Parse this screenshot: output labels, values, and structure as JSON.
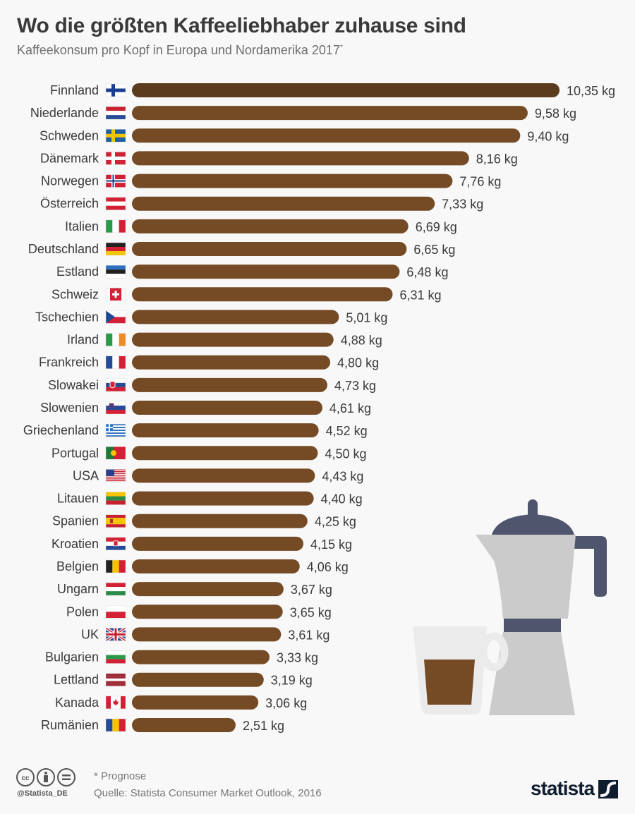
{
  "title": "Wo die größten Kaffeeliebhaber zuhause sind",
  "subtitle": "Kaffeekonsum pro Kopf in Europa und Nordamerika 2017",
  "subtitle_mark": "*",
  "footer": {
    "note": "* Prognose",
    "source": "Quelle: Statista Consumer Market Outlook, 2016",
    "handle": "@Statista_DE",
    "logo": "statista",
    "license_icons": [
      "cc-icon",
      "by-icon",
      "nd-icon"
    ]
  },
  "colors": {
    "bar": "#744b25",
    "bar_highlight": "#5a3b1e",
    "text": "#3a3a3a",
    "pot_body": "#cbcbcb",
    "pot_dark": "#4f556d",
    "cup": "#ebebeb"
  },
  "chart_data": {
    "type": "bar",
    "orientation": "horizontal",
    "unit": "kg",
    "categories": [
      "Finnland",
      "Niederlande",
      "Schweden",
      "Dänemark",
      "Norwegen",
      "Österreich",
      "Italien",
      "Deutschland",
      "Estland",
      "Schweiz",
      "Tschechien",
      "Irland",
      "Frankreich",
      "Slowakei",
      "Slowenien",
      "Griechenland",
      "Portugal",
      "USA",
      "Litauen",
      "Spanien",
      "Kroatien",
      "Belgien",
      "Ungarn",
      "Polen",
      "UK",
      "Bulgarien",
      "Lettland",
      "Kanada",
      "Rumänien"
    ],
    "values": [
      10.35,
      9.58,
      9.4,
      8.16,
      7.76,
      7.33,
      6.69,
      6.65,
      6.48,
      6.31,
      5.01,
      4.88,
      4.8,
      4.73,
      4.61,
      4.52,
      4.5,
      4.43,
      4.4,
      4.25,
      4.15,
      4.06,
      3.67,
      3.65,
      3.61,
      3.33,
      3.19,
      3.06,
      2.51
    ],
    "labels": [
      "10,35 kg",
      "9,58 kg",
      "9,40 kg",
      "8,16 kg",
      "7,76 kg",
      "7,33 kg",
      "6,69 kg",
      "6,65 kg",
      "6,48 kg",
      "6,31 kg",
      "5,01 kg",
      "4,88 kg",
      "4,80 kg",
      "4,73 kg",
      "4,61 kg",
      "4,52 kg",
      "4,50 kg",
      "4,43 kg",
      "4,40 kg",
      "4,25 kg",
      "4,15 kg",
      "4,06 kg",
      "3,67 kg",
      "3,65 kg",
      "3,61 kg",
      "3,33 kg",
      "3,19 kg",
      "3,06 kg",
      "2,51 kg"
    ],
    "flags": [
      "fi",
      "nl",
      "se",
      "dk",
      "no",
      "at",
      "it",
      "de",
      "ee",
      "ch",
      "cz",
      "ie",
      "fr",
      "sk",
      "si",
      "gr",
      "pt",
      "us",
      "lt",
      "es",
      "hr",
      "be",
      "hu",
      "pl",
      "gb",
      "bg",
      "lv",
      "ca",
      "ro"
    ],
    "highlight_index": 0,
    "xlim": [
      0,
      10.35
    ]
  }
}
